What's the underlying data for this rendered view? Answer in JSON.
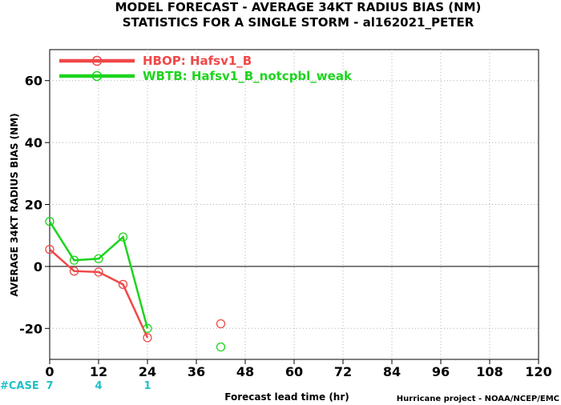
{
  "chart_data": {
    "type": "line",
    "title_line1": "MODEL FORECAST - AVERAGE 34KT RADIUS BIAS (NM)",
    "title_line2": "STATISTICS FOR A SINGLE STORM - al162021_PETER",
    "xlabel": "Forecast lead time (hr)",
    "ylabel": "AVERAGE 34KT RADIUS BIAS (NM)",
    "credit": "Hurricane project - NOAA/NCEP/EMC",
    "xlim": [
      0,
      120
    ],
    "ylim": [
      -30,
      70
    ],
    "x_ticks": [
      0,
      12,
      24,
      36,
      48,
      60,
      72,
      84,
      96,
      108,
      120
    ],
    "y_ticks": [
      -20,
      0,
      20,
      40,
      60
    ],
    "grid": true,
    "legend_position": "top-left",
    "series": [
      {
        "name": "HBOP: Hafsv1_B",
        "color": "#f04848",
        "x": [
          0,
          6,
          12,
          18,
          24
        ],
        "y": [
          5.5,
          -1.5,
          -1.8,
          -5.8,
          -23
        ],
        "isolated_points": [
          {
            "x": 42,
            "y": -18.5
          }
        ]
      },
      {
        "name": "WBTB: Hafsv1_B_notcpbl_weak",
        "color": "#1ed41e",
        "x": [
          0,
          6,
          12,
          18,
          24
        ],
        "y": [
          14.5,
          2,
          2.5,
          9.5,
          -20
        ],
        "isolated_points": [
          {
            "x": 42,
            "y": -26
          }
        ]
      }
    ],
    "cases": {
      "label": "#CASE",
      "color": "#20c0c8",
      "entries": [
        {
          "x": 0,
          "count": "7"
        },
        {
          "x": 12,
          "count": "4"
        },
        {
          "x": 24,
          "count": "1"
        }
      ]
    }
  }
}
